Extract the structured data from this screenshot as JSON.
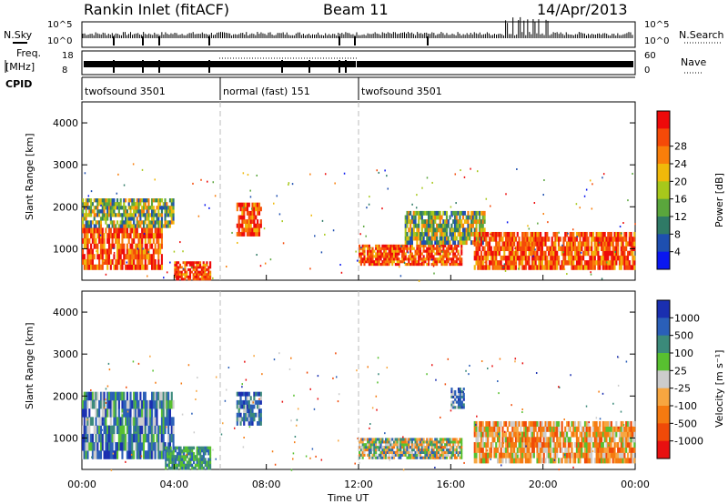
{
  "header": {
    "station": "Rankin Inlet (fitACF)",
    "beam": "Beam 11",
    "date": "14/Apr/2013"
  },
  "status_panel": {
    "left_top": "N.Sky",
    "left_freq_1": "Freq.",
    "left_freq_2": "[MHz]",
    "cpid_label": "CPID",
    "right_top": "N.Search",
    "right_bottom": "Nave",
    "noise_ticks_left": [
      "10^5",
      "10^0"
    ],
    "noise_ticks_right": [
      "10^5",
      "10^0"
    ],
    "freq_ticks": [
      "18",
      "8"
    ],
    "nave_ticks": [
      "60",
      "0"
    ],
    "cpid_segments": [
      {
        "label": "twofsound 3501",
        "start": 0,
        "end": 6
      },
      {
        "label": "normal (fast) 151",
        "start": 6,
        "end": 12
      },
      {
        "label": "twofsound 3501",
        "start": 12,
        "end": 24
      }
    ]
  },
  "chart_data": [
    {
      "type": "heatmap",
      "quantity": "power",
      "xlabel": "",
      "ylabel": "Slant Range [km]",
      "xlim": [
        0,
        24
      ],
      "ylim": [
        250,
        4500
      ],
      "yticks": [
        1000,
        2000,
        3000,
        4000
      ],
      "colorbar": {
        "label": "Power [dB]",
        "ticks": [
          "4",
          "8",
          "12",
          "16",
          "20",
          "24",
          "28"
        ],
        "colors": [
          "#0a17f0",
          "#1e4fb0",
          "#2f7a66",
          "#5aa63c",
          "#a7c81b",
          "#f0b90a",
          "#f97e0a",
          "#f54a08",
          "#ee0a0a"
        ]
      },
      "echo_regions": [
        {
          "t0": 0.0,
          "t1": 3.5,
          "r0": 500,
          "r1": 1500,
          "level": "high"
        },
        {
          "t0": 0.0,
          "t1": 4.0,
          "r0": 1500,
          "r1": 2200,
          "level": "mid"
        },
        {
          "t0": 4.0,
          "t1": 5.6,
          "r0": 250,
          "r1": 700,
          "level": "high"
        },
        {
          "t0": 6.7,
          "t1": 7.8,
          "r0": 1300,
          "r1": 2100,
          "level": "high"
        },
        {
          "t0": 12.0,
          "t1": 16.5,
          "r0": 600,
          "r1": 1100,
          "level": "high"
        },
        {
          "t0": 14.0,
          "t1": 17.5,
          "r0": 1100,
          "r1": 1900,
          "level": "mid"
        },
        {
          "t0": 17.0,
          "t1": 24.0,
          "r0": 500,
          "r1": 1400,
          "level": "high"
        }
      ]
    },
    {
      "type": "heatmap",
      "quantity": "velocity",
      "xlabel": "Time UT",
      "ylabel": "Slant Range [km]",
      "xlim": [
        0,
        24
      ],
      "ylim": [
        250,
        4500
      ],
      "yticks": [
        1000,
        2000,
        3000,
        4000
      ],
      "xticks": [
        "00:00",
        "04:00",
        "08:00",
        "12:00",
        "16:00",
        "20:00",
        "00:00"
      ],
      "colorbar": {
        "label": "Velocity [m s⁻¹]",
        "ticks": [
          "1000",
          "500",
          "100",
          "25",
          "-25",
          "-100",
          "-500",
          "-1000"
        ],
        "colors": [
          "#1a2fb0",
          "#2a5fb8",
          "#3b8a7a",
          "#58c030",
          "#cccccc",
          "#f7a640",
          "#f57a10",
          "#f04a08",
          "#e81010"
        ]
      },
      "echo_regions": [
        {
          "t0": 0.0,
          "t1": 4.0,
          "r0": 500,
          "r1": 2100,
          "level": "negative-away"
        },
        {
          "t0": 3.6,
          "t1": 5.6,
          "r0": 250,
          "r1": 800,
          "level": "toward-green"
        },
        {
          "t0": 6.7,
          "t1": 7.8,
          "r0": 1300,
          "r1": 2100,
          "level": "toward-blue"
        },
        {
          "t0": 12.0,
          "t1": 16.5,
          "r0": 500,
          "r1": 1000,
          "level": "mixed"
        },
        {
          "t0": 16.0,
          "t1": 16.6,
          "r0": 1700,
          "r1": 2200,
          "level": "toward-blue"
        },
        {
          "t0": 17.0,
          "t1": 24.0,
          "r0": 400,
          "r1": 1400,
          "level": "away-orange"
        }
      ]
    }
  ]
}
